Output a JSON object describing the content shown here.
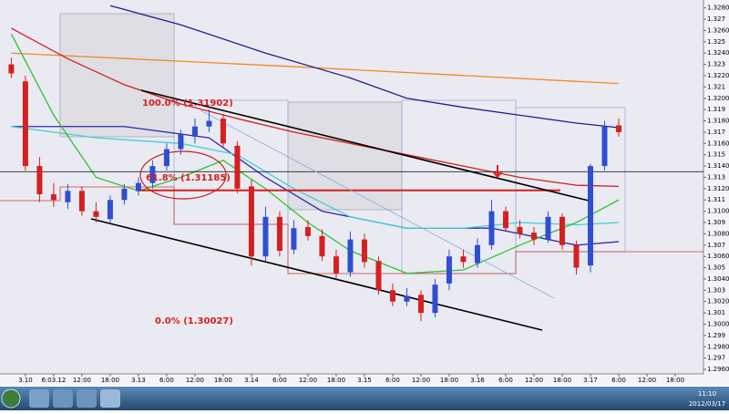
{
  "chart_data": {
    "type": "candlestick",
    "annotations": [
      "100.0%  (1.31902)",
      "61.8%  (1.31185)",
      "0.0%  (1.30027)"
    ],
    "open": [
      1.323,
      1.3215,
      1.314,
      1.3115,
      1.3108,
      1.3118,
      1.31,
      1.3093,
      1.311,
      1.3118,
      1.3125,
      1.314,
      1.3155,
      1.3166,
      1.3175,
      1.3182,
      1.3158,
      1.3122,
      1.306,
      1.3095,
      1.3066,
      1.3086,
      1.3078,
      1.306,
      1.3046,
      1.3075,
      1.3056,
      1.303,
      1.302,
      1.3026,
      1.301,
      1.3036,
      1.306,
      1.3054,
      1.307,
      1.31,
      1.3086,
      1.3081,
      1.3075,
      1.3095,
      1.307,
      1.3052,
      1.314,
      1.3176
    ],
    "high": [
      1.3236,
      1.322,
      1.3148,
      1.3125,
      1.3124,
      1.3122,
      1.3108,
      1.3114,
      1.3124,
      1.313,
      1.3145,
      1.316,
      1.3172,
      1.3182,
      1.31902,
      1.3186,
      1.3162,
      1.3128,
      1.3104,
      1.31,
      1.3092,
      1.3092,
      1.3084,
      1.3066,
      1.3082,
      1.308,
      1.306,
      1.3036,
      1.3032,
      1.303,
      1.304,
      1.3066,
      1.3066,
      1.3076,
      1.311,
      1.3104,
      1.3092,
      1.3086,
      1.31,
      1.3098,
      1.3074,
      1.3142,
      1.318,
      1.3182
    ],
    "low": [
      1.3218,
      1.3136,
      1.3108,
      1.3104,
      1.3102,
      1.3096,
      1.309,
      1.309,
      1.3106,
      1.3114,
      1.312,
      1.3136,
      1.315,
      1.316,
      1.317,
      1.3156,
      1.3116,
      1.3052,
      1.3056,
      1.306,
      1.3062,
      1.3074,
      1.3056,
      1.304,
      1.3042,
      1.305,
      1.3026,
      1.3016,
      1.3016,
      1.30027,
      1.3006,
      1.303,
      1.305,
      1.305,
      1.3066,
      1.3082,
      1.3076,
      1.307,
      1.3072,
      1.3066,
      1.3044,
      1.3046,
      1.3136,
      1.3166
    ],
    "close": [
      1.3222,
      1.314,
      1.3115,
      1.311,
      1.3118,
      1.31,
      1.3095,
      1.311,
      1.312,
      1.3125,
      1.314,
      1.3155,
      1.3168,
      1.3175,
      1.318,
      1.316,
      1.312,
      1.306,
      1.3095,
      1.3065,
      1.3085,
      1.3078,
      1.306,
      1.3045,
      1.3075,
      1.3055,
      1.303,
      1.302,
      1.3025,
      1.301,
      1.3035,
      1.306,
      1.3055,
      1.307,
      1.31,
      1.3085,
      1.308,
      1.3075,
      1.3095,
      1.307,
      1.305,
      1.314,
      1.3175,
      1.317
    ],
    "up_color": "#2f4fd0",
    "down_color": "#d42020",
    "overlays": [
      {
        "color": "#f08a20",
        "x": [
          0,
          20,
          43
        ],
        "values": [
          1.324,
          1.3228,
          1.3213
        ]
      },
      {
        "color": "#d02020",
        "x": [
          0,
          4,
          8,
          12,
          16,
          20,
          24,
          28,
          32,
          36,
          40,
          43
        ],
        "values": [
          1.3262,
          1.3235,
          1.3212,
          1.3195,
          1.3182,
          1.317,
          1.316,
          1.315,
          1.314,
          1.313,
          1.3123,
          1.3122
        ]
      },
      {
        "color": "#20208a",
        "x": [
          7,
          12,
          18,
          24,
          28,
          32,
          36,
          40,
          43
        ],
        "values": [
          1.3282,
          1.3265,
          1.324,
          1.3218,
          1.32,
          1.3192,
          1.3185,
          1.3178,
          1.3174
        ]
      },
      {
        "color": "#2a2aa8",
        "x": [
          0,
          8,
          14,
          18,
          22,
          28,
          34,
          40,
          43
        ],
        "values": [
          1.3175,
          1.3175,
          1.3165,
          1.313,
          1.31,
          1.3085,
          1.3085,
          1.307,
          1.3073
        ]
      },
      {
        "color": "#40d0d8",
        "x": [
          0,
          6,
          12,
          16,
          20,
          24,
          28,
          32,
          36,
          40,
          43
        ],
        "values": [
          1.3175,
          1.3165,
          1.316,
          1.315,
          1.312,
          1.3095,
          1.3085,
          1.3085,
          1.309,
          1.3088,
          1.309
        ]
      },
      {
        "color": "#30c030",
        "x": [
          0,
          3,
          6,
          9,
          12,
          15,
          18,
          21,
          24,
          28,
          32,
          36,
          40,
          43
        ],
        "values": [
          1.3257,
          1.3185,
          1.313,
          1.3118,
          1.313,
          1.3145,
          1.312,
          1.309,
          1.3065,
          1.3045,
          1.3048,
          1.307,
          1.309,
          1.311
        ]
      }
    ],
    "fib_level": 1.31185,
    "level_line": 1.3135,
    "xlim": [
      -0.8,
      49
    ],
    "xticks": [
      {
        "value": 1,
        "label": "3.10"
      },
      {
        "value": 3,
        "label": "6:03.12"
      },
      {
        "value": 5,
        "label": "12:00"
      },
      {
        "value": 7,
        "label": "18:00"
      },
      {
        "value": 9,
        "label": "3.13"
      },
      {
        "value": 11,
        "label": "6:00"
      },
      {
        "value": 13,
        "label": "12:00"
      },
      {
        "value": 15,
        "label": "18:00"
      },
      {
        "value": 17,
        "label": "3.14"
      },
      {
        "value": 19,
        "label": "6:00"
      },
      {
        "value": 21,
        "label": "12:00"
      },
      {
        "value": 23,
        "label": "18:00"
      },
      {
        "value": 25,
        "label": "3.15"
      },
      {
        "value": 27,
        "label": "6:00"
      },
      {
        "value": 29,
        "label": "12:00"
      },
      {
        "value": 31,
        "label": "18:00"
      },
      {
        "value": 33,
        "label": "3.16"
      },
      {
        "value": 35,
        "label": "6:00"
      },
      {
        "value": 37,
        "label": "12:00"
      },
      {
        "value": 39,
        "label": "18:00"
      },
      {
        "value": 41,
        "label": "3.17"
      },
      {
        "value": 43,
        "label": "6:00"
      },
      {
        "value": 45,
        "label": "12:00"
      },
      {
        "value": 47,
        "label": "18:00"
      }
    ],
    "ylim": [
      1.2956,
      1.3287
    ],
    "yticks": [
      {
        "value": 1.296,
        "label": "1.2960"
      },
      1.297,
      {
        "value": 1.298,
        "label": "1.2980"
      },
      1.299,
      {
        "value": 1.3,
        "label": "1.3000"
      },
      1.301,
      {
        "value": 1.302,
        "label": "1.3020"
      },
      1.303,
      {
        "value": 1.304,
        "label": "1.3040"
      },
      1.305,
      {
        "value": 1.306,
        "label": "1.3060"
      },
      1.307,
      {
        "value": 1.308,
        "label": "1.3080"
      },
      1.309,
      {
        "value": 1.31,
        "label": "1.3100"
      },
      1.311,
      {
        "value": 1.312,
        "label": "1.3120"
      },
      1.313,
      {
        "value": 1.314,
        "label": "1.3140"
      },
      1.315,
      {
        "value": 1.316,
        "label": "1.3160"
      },
      1.317,
      {
        "value": 1.318,
        "label": "1.3180"
      },
      1.319,
      {
        "value": 1.32,
        "label": "1.3200"
      },
      1.321,
      {
        "value": 1.322,
        "label": "1.3220"
      },
      1.323,
      {
        "value": 1.324,
        "label": "1.3240"
      },
      1.325,
      {
        "value": 1.326,
        "label": "1.3260"
      },
      1.327,
      {
        "value": 1.328,
        "label": "1.3280"
      }
    ]
  },
  "taskbar": {
    "time": "11:10",
    "date": "2012/03/17"
  }
}
